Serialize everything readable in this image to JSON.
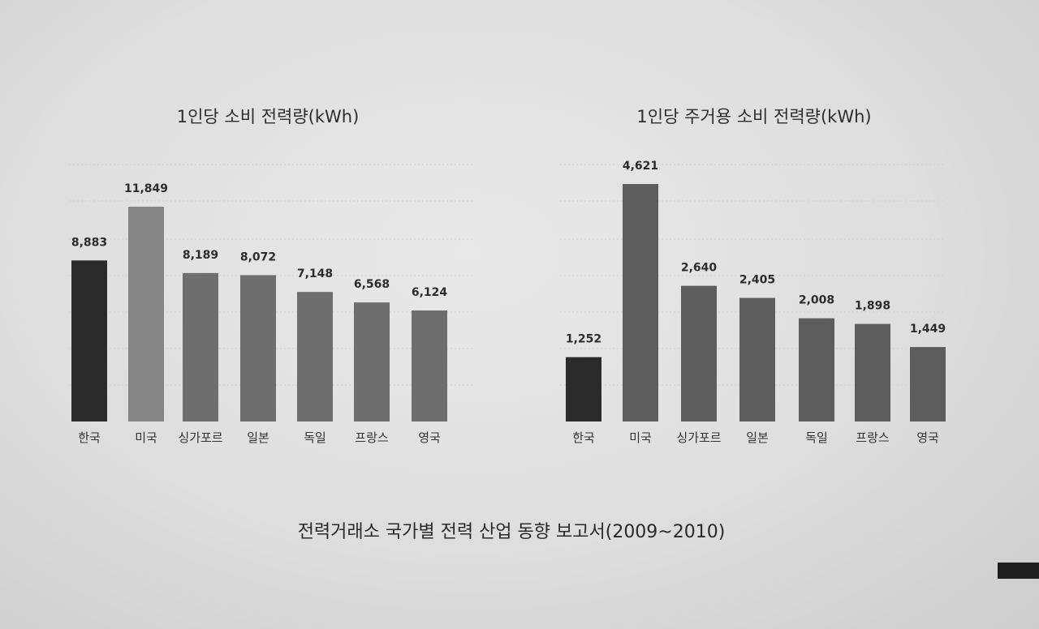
{
  "colors": {
    "highlight": "#2b2b2b",
    "usa_left": "#858585",
    "bar_left": "#6e6e6e",
    "bar_right": "#5d5d5d",
    "grid": "#cfcfcf"
  },
  "chart_data": [
    {
      "type": "bar",
      "title": "1인당 소비 전력량(kWh)",
      "categories": [
        "한국",
        "미국",
        "싱가포르",
        "일본",
        "독일",
        "프랑스",
        "영국"
      ],
      "values": [
        8883,
        11849,
        8189,
        8072,
        7148,
        6568,
        6124
      ],
      "value_labels": [
        "8,883",
        "11,849",
        "8,189",
        "8,072",
        "7,148",
        "6,568",
        "6,124"
      ],
      "grid": true
    },
    {
      "type": "bar",
      "title": "1인당 주거용 소비 전력량(kWh)",
      "categories": [
        "한국",
        "미국",
        "싱가포르",
        "일본",
        "독일",
        "프랑스",
        "영국"
      ],
      "values": [
        1252,
        4621,
        2640,
        2405,
        2008,
        1898,
        1449
      ],
      "value_labels": [
        "1,252",
        "4,621",
        "2,640",
        "2,405",
        "2,008",
        "1,898",
        "1,449"
      ],
      "grid": true
    }
  ],
  "source": "전력거래소 국가별 전력 산업 동향 보고서(2009~2010)"
}
